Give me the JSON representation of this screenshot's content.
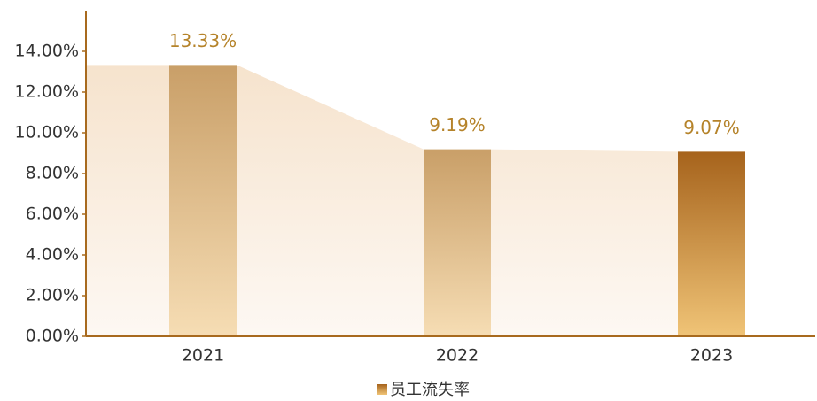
{
  "chart_data": {
    "type": "bar",
    "categories": [
      "2021",
      "2022",
      "2023"
    ],
    "series": [
      {
        "name": "员工流失率",
        "color": "#c99f68",
        "values": [
          13.33,
          9.19,
          9.07
        ],
        "value_labels": [
          "13.33%",
          "9.19%",
          "9.07%"
        ]
      }
    ],
    "ylim": [
      0,
      16
    ],
    "yticks": [
      {
        "value": 0,
        "label": "0.00%"
      },
      {
        "value": 2,
        "label": "2.00%"
      },
      {
        "value": 4,
        "label": "4.00%"
      },
      {
        "value": 6,
        "label": "6.00%"
      },
      {
        "value": 8,
        "label": "8.00%"
      },
      {
        "value": 10,
        "label": "10.00%"
      },
      {
        "value": 12,
        "label": "12.00%"
      },
      {
        "value": 14,
        "label": "14.00%"
      }
    ],
    "grid": false
  }
}
